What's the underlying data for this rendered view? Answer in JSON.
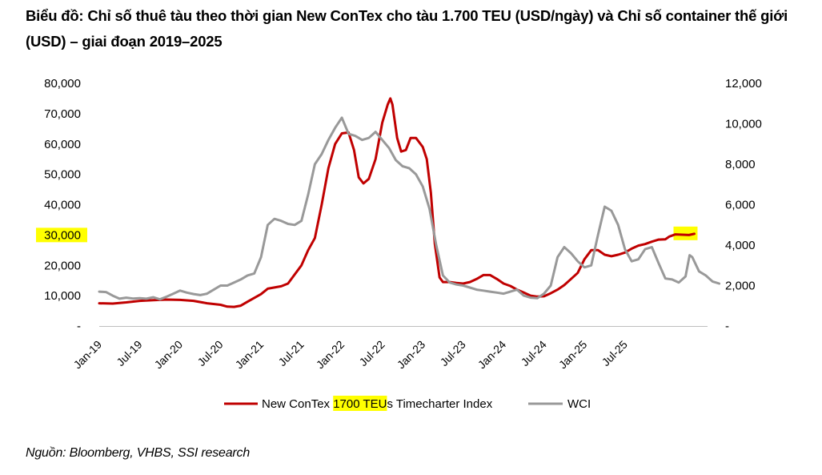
{
  "title": "Biểu đồ: Chỉ số thuê tàu theo thời gian New ConTex cho tàu 1.700 TEU (USD/ngày) và Chỉ số container thế giới (USD) – giai đoạn 2019–2025",
  "source": "Nguồn: Bloomberg, VHBS, SSI research",
  "colors": {
    "contex": "#c00000",
    "wci": "#999999",
    "highlight": "#ffff00"
  },
  "chart_data": {
    "type": "line",
    "x_ticks": [
      "Jan-19",
      "Jul-19",
      "Jan-20",
      "Jul-20",
      "Jan-21",
      "Jul-21",
      "Jan-22",
      "Jul-22",
      "Jan-23",
      "Jul-23",
      "Jan-24",
      "Jul-24",
      "Jan-25",
      "Jul-25"
    ],
    "y_left": {
      "ticks": [
        0,
        10000,
        20000,
        30000,
        40000,
        50000,
        60000,
        70000,
        80000
      ],
      "tick_labels": [
        "-",
        "10,000",
        "20,000",
        "30,000",
        "40,000",
        "50,000",
        "60,000",
        "70,000",
        "80,000"
      ],
      "range": [
        0,
        80000
      ],
      "highlighted_tick": "30,000"
    },
    "y_right": {
      "ticks": [
        0,
        2000,
        4000,
        6000,
        8000,
        10000,
        12000
      ],
      "tick_labels": [
        "-",
        "2,000",
        "4,000",
        "6,000",
        "8,000",
        "10,000",
        "12,000"
      ],
      "range": [
        0,
        12000
      ]
    },
    "legend": {
      "position": "bottom",
      "contex_pre": "New ConTex ",
      "contex_hl": "1700 TEU",
      "contex_post": "s Timecharter Index",
      "wci": "WCI"
    },
    "series": [
      {
        "name": "New ConTex 1700 TEUs Timecharter Index",
        "axis": "left",
        "points": [
          [
            0,
            7500
          ],
          [
            2,
            7400
          ],
          [
            4,
            7800
          ],
          [
            6,
            8300
          ],
          [
            8,
            8500
          ],
          [
            10,
            8700
          ],
          [
            12,
            8600
          ],
          [
            14,
            8300
          ],
          [
            16,
            7500
          ],
          [
            18,
            7000
          ],
          [
            19,
            6400
          ],
          [
            20,
            6300
          ],
          [
            21,
            6700
          ],
          [
            22,
            8000
          ],
          [
            24,
            10500
          ],
          [
            25,
            12300
          ],
          [
            26,
            12700
          ],
          [
            27,
            13100
          ],
          [
            28,
            14000
          ],
          [
            29,
            17000
          ],
          [
            30,
            20000
          ],
          [
            31,
            25000
          ],
          [
            32,
            29000
          ],
          [
            33,
            40000
          ],
          [
            34,
            52000
          ],
          [
            35,
            60000
          ],
          [
            36,
            63500
          ],
          [
            37,
            63800
          ],
          [
            37.8,
            58000
          ],
          [
            38.5,
            49000
          ],
          [
            39.2,
            47000
          ],
          [
            40,
            48500
          ],
          [
            41,
            55000
          ],
          [
            42,
            67000
          ],
          [
            42.8,
            73000
          ],
          [
            43.2,
            75000
          ],
          [
            43.5,
            73000
          ],
          [
            44.2,
            62000
          ],
          [
            44.8,
            57500
          ],
          [
            45.5,
            58000
          ],
          [
            46.2,
            62000
          ],
          [
            47,
            62000
          ],
          [
            48,
            59000
          ],
          [
            48.6,
            55000
          ],
          [
            49.2,
            44000
          ],
          [
            49.8,
            27000
          ],
          [
            50.5,
            16000
          ],
          [
            51,
            14500
          ],
          [
            52,
            14500
          ],
          [
            53,
            14200
          ],
          [
            54,
            14000
          ],
          [
            55,
            14500
          ],
          [
            56,
            15500
          ],
          [
            57,
            16800
          ],
          [
            58,
            16800
          ],
          [
            59,
            15500
          ],
          [
            60,
            14000
          ],
          [
            61,
            13200
          ],
          [
            62,
            12000
          ],
          [
            63,
            11000
          ],
          [
            64,
            10000
          ],
          [
            65,
            9700
          ],
          [
            66,
            9800
          ],
          [
            67,
            10800
          ],
          [
            68,
            12000
          ],
          [
            69,
            13500
          ],
          [
            70,
            15500
          ],
          [
            71,
            17500
          ],
          [
            72,
            22000
          ],
          [
            73,
            25000
          ],
          [
            74,
            25000
          ],
          [
            75,
            23500
          ],
          [
            76,
            23000
          ],
          [
            77,
            23500
          ],
          [
            78,
            24200
          ],
          [
            79,
            25500
          ],
          [
            80,
            26500
          ],
          [
            81,
            27000
          ],
          [
            82,
            27800
          ],
          [
            83,
            28500
          ],
          [
            84,
            28600
          ],
          [
            84.6,
            29500
          ],
          [
            85.5,
            30200
          ],
          [
            86.5,
            30100
          ],
          [
            87.5,
            30000
          ],
          [
            88.3,
            30400
          ]
        ]
      },
      {
        "name": "WCI",
        "axis": "right",
        "points": [
          [
            0,
            1700
          ],
          [
            1,
            1680
          ],
          [
            2,
            1500
          ],
          [
            3,
            1350
          ],
          [
            4,
            1400
          ],
          [
            5,
            1360
          ],
          [
            6,
            1380
          ],
          [
            7,
            1350
          ],
          [
            8,
            1420
          ],
          [
            9,
            1320
          ],
          [
            10,
            1450
          ],
          [
            11,
            1600
          ],
          [
            12,
            1750
          ],
          [
            13,
            1650
          ],
          [
            14,
            1580
          ],
          [
            15,
            1530
          ],
          [
            16,
            1600
          ],
          [
            17,
            1800
          ],
          [
            18,
            2000
          ],
          [
            19,
            2000
          ],
          [
            20,
            2150
          ],
          [
            21,
            2300
          ],
          [
            22,
            2500
          ],
          [
            23,
            2600
          ],
          [
            24,
            3400
          ],
          [
            25,
            5000
          ],
          [
            26,
            5300
          ],
          [
            27,
            5200
          ],
          [
            28,
            5050
          ],
          [
            29,
            5000
          ],
          [
            30,
            5200
          ],
          [
            31,
            6500
          ],
          [
            32,
            8000
          ],
          [
            33,
            8500
          ],
          [
            34,
            9200
          ],
          [
            35,
            9800
          ],
          [
            36,
            10300
          ],
          [
            37,
            9500
          ],
          [
            38,
            9400
          ],
          [
            39,
            9200
          ],
          [
            40,
            9300
          ],
          [
            41,
            9600
          ],
          [
            42,
            9200
          ],
          [
            43,
            8800
          ],
          [
            44,
            8200
          ],
          [
            45,
            7900
          ],
          [
            46,
            7800
          ],
          [
            47,
            7500
          ],
          [
            48,
            6900
          ],
          [
            49,
            5800
          ],
          [
            50,
            4000
          ],
          [
            51,
            2500
          ],
          [
            52,
            2150
          ],
          [
            53,
            2050
          ],
          [
            54,
            2000
          ],
          [
            55,
            1900
          ],
          [
            56,
            1800
          ],
          [
            57,
            1750
          ],
          [
            58,
            1700
          ],
          [
            59,
            1650
          ],
          [
            60,
            1600
          ],
          [
            61,
            1700
          ],
          [
            62,
            1800
          ],
          [
            63,
            1500
          ],
          [
            64,
            1400
          ],
          [
            65,
            1380
          ],
          [
            66,
            1600
          ],
          [
            67,
            2000
          ],
          [
            68,
            3400
          ],
          [
            69,
            3900
          ],
          [
            70,
            3600
          ],
          [
            71,
            3200
          ],
          [
            72,
            2900
          ],
          [
            73,
            3000
          ],
          [
            74,
            4500
          ],
          [
            75,
            5900
          ],
          [
            76,
            5700
          ],
          [
            77,
            5000
          ],
          [
            78,
            3800
          ],
          [
            79,
            3200
          ],
          [
            80,
            3300
          ],
          [
            81,
            3800
          ],
          [
            82,
            3900
          ],
          [
            83,
            3100
          ],
          [
            84,
            2350
          ],
          [
            85,
            2300
          ],
          [
            86,
            2150
          ],
          [
            87,
            2450
          ],
          [
            87.6,
            3500
          ],
          [
            88,
            3400
          ],
          [
            89,
            2700
          ],
          [
            90,
            2500
          ],
          [
            91,
            2200
          ],
          [
            92,
            2100
          ]
        ]
      }
    ]
  }
}
